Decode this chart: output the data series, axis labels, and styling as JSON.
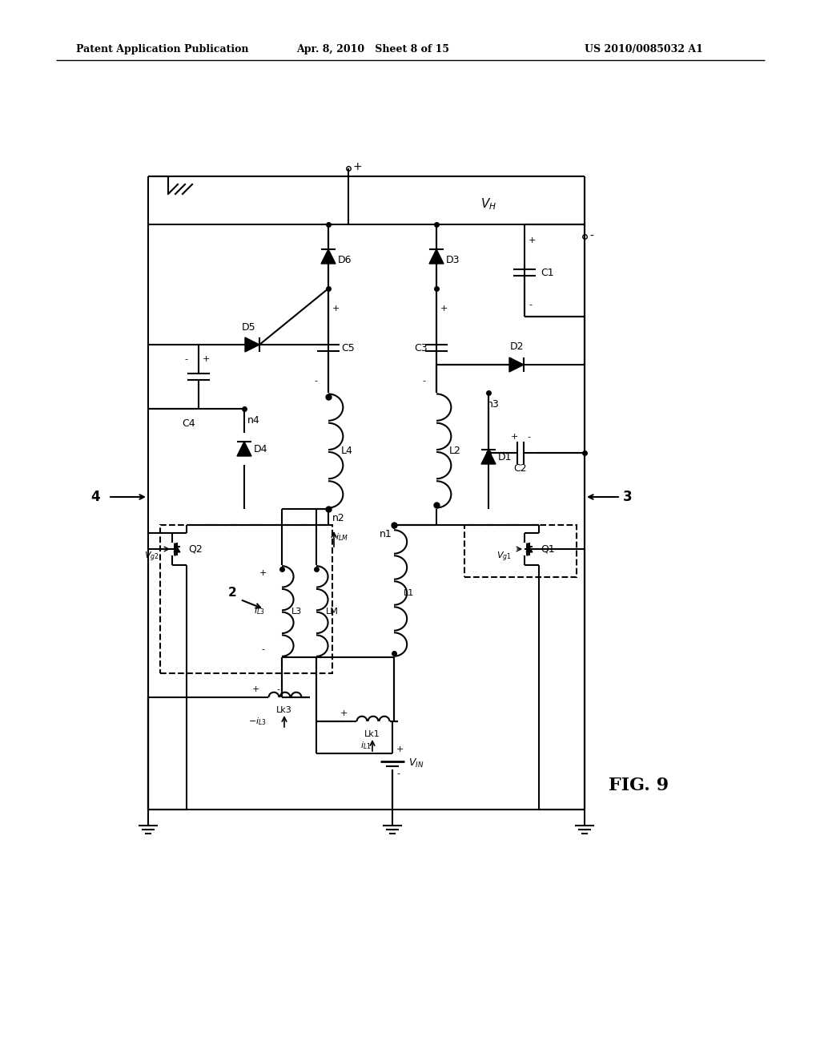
{
  "header_left": "Patent Application Publication",
  "header_center": "Apr. 8, 2010   Sheet 8 of 15",
  "header_right": "US 2010/0085032 A1",
  "fig_label": "FIG. 9",
  "bg_color": "#ffffff"
}
